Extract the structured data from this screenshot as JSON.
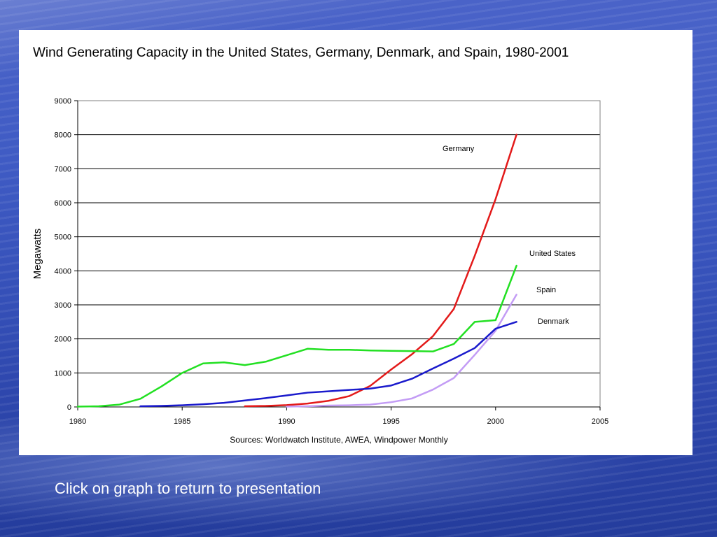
{
  "slide": {
    "footer_link": "Click on graph to return to presentation"
  },
  "chart_data": {
    "type": "line",
    "title": "Wind Generating Capacity in the United States, Germany, Denmark, and Spain, 1980-2001",
    "xlabel": "Sources: Worldwatch Institute, AWEA, Windpower Monthly",
    "ylabel": "Megawatts",
    "xlim": [
      1980,
      2005
    ],
    "ylim": [
      0,
      9000
    ],
    "xticks": [
      1980,
      1985,
      1990,
      1995,
      2000,
      2005
    ],
    "yticks": [
      0,
      1000,
      2000,
      3000,
      4000,
      5000,
      6000,
      7000,
      8000,
      9000
    ],
    "grid": "horizontal",
    "series": [
      {
        "name": "Germany",
        "color": "#e31a1a",
        "x": [
          1988,
          1989,
          1990,
          1991,
          1992,
          1993,
          1994,
          1995,
          1996,
          1997,
          1998,
          1999,
          2000,
          2001
        ],
        "y": [
          20,
          30,
          55,
          100,
          180,
          320,
          620,
          1100,
          1550,
          2080,
          2880,
          4440,
          6110,
          8000
        ]
      },
      {
        "name": "United States",
        "color": "#22e022",
        "x": [
          1980,
          1981,
          1982,
          1983,
          1984,
          1985,
          1986,
          1987,
          1988,
          1989,
          1990,
          1991,
          1992,
          1993,
          1994,
          1995,
          1996,
          1997,
          1998,
          1999,
          2000,
          2001
        ],
        "y": [
          10,
          20,
          70,
          240,
          600,
          1000,
          1280,
          1310,
          1230,
          1330,
          1520,
          1710,
          1680,
          1680,
          1660,
          1650,
          1640,
          1630,
          1850,
          2500,
          2550,
          4150
        ]
      },
      {
        "name": "Spain",
        "color": "#c39cf5",
        "x": [
          1990,
          1991,
          1992,
          1993,
          1994,
          1995,
          1996,
          1997,
          1998,
          1999,
          2000,
          2001
        ],
        "y": [
          10,
          20,
          40,
          50,
          70,
          140,
          250,
          510,
          850,
          1530,
          2240,
          3300
        ]
      },
      {
        "name": "Denmark",
        "color": "#1a1acc",
        "x": [
          1983,
          1984,
          1985,
          1986,
          1987,
          1988,
          1989,
          1990,
          1991,
          1992,
          1993,
          1994,
          1995,
          1996,
          1997,
          1998,
          1999,
          2000,
          2001
        ],
        "y": [
          20,
          30,
          50,
          80,
          120,
          190,
          260,
          340,
          420,
          460,
          500,
          540,
          630,
          830,
          1130,
          1420,
          1730,
          2300,
          2500
        ]
      }
    ]
  }
}
